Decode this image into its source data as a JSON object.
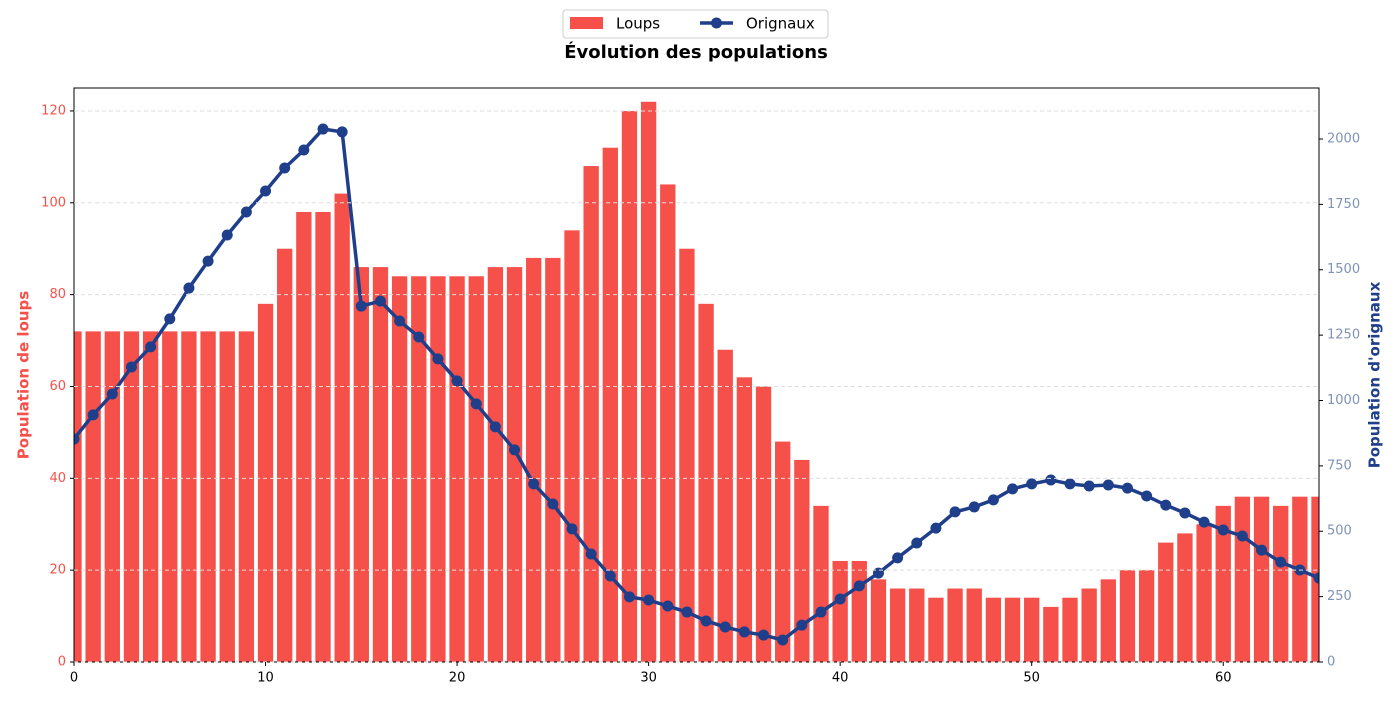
{
  "chart_data": {
    "type": "combo",
    "title": "Évolution des populations",
    "ylabel": "Population de loups",
    "y2label": "Population d'orignaux",
    "x": [
      0,
      1,
      2,
      3,
      4,
      5,
      6,
      7,
      8,
      9,
      10,
      11,
      12,
      13,
      14,
      15,
      16,
      17,
      18,
      19,
      20,
      21,
      22,
      23,
      24,
      25,
      26,
      27,
      28,
      29,
      30,
      31,
      32,
      33,
      34,
      35,
      36,
      37,
      38,
      39,
      40,
      41,
      42,
      43,
      44,
      45,
      46,
      47,
      48,
      49,
      50,
      51,
      52,
      53,
      54,
      55,
      56,
      57,
      58,
      59,
      60,
      61,
      62,
      63,
      64,
      65
    ],
    "series": [
      {
        "name": "Loups",
        "type": "bar",
        "color": "#f5514a",
        "values": [
          72,
          72,
          72,
          72,
          72,
          72,
          72,
          72,
          72,
          72,
          78,
          90,
          98,
          98,
          102,
          86,
          86,
          84,
          84,
          84,
          84,
          84,
          86,
          86,
          88,
          88,
          94,
          108,
          112,
          120,
          122,
          104,
          90,
          78,
          68,
          62,
          60,
          48,
          44,
          34,
          22,
          22,
          18,
          16,
          16,
          14,
          16,
          16,
          14,
          14,
          14,
          12,
          14,
          16,
          18,
          20,
          20,
          26,
          28,
          30,
          34,
          36,
          36,
          34,
          36,
          36
        ]
      },
      {
        "name": "Orignaux",
        "type": "line",
        "axis": "y2",
        "color": "#1f3f8a",
        "values": [
          853,
          945,
          1025,
          1128,
          1205,
          1312,
          1430,
          1533,
          1633,
          1721,
          1801,
          1889,
          1958,
          2038,
          2027,
          1361,
          1380,
          1304,
          1243,
          1159,
          1075,
          987,
          899,
          811,
          681,
          604,
          509,
          413,
          329,
          249,
          237,
          214,
          191,
          157,
          134,
          115,
          103,
          84,
          141,
          191,
          241,
          291,
          340,
          398,
          455,
          512,
          574,
          593,
          620,
          662,
          681,
          696,
          681,
          673,
          677,
          665,
          635,
          600,
          570,
          535,
          505,
          482,
          428,
          382,
          352,
          321
        ]
      }
    ],
    "xlim": [
      0,
      65
    ],
    "xticks": [
      0,
      10,
      20,
      30,
      40,
      50,
      60
    ],
    "ylim": [
      0,
      125
    ],
    "yticks": [
      0,
      20,
      40,
      60,
      80,
      100,
      120
    ],
    "y2lim": [
      0,
      2195
    ],
    "y2ticks": [
      0,
      250,
      500,
      750,
      1000,
      1250,
      1500,
      1750,
      2000
    ],
    "grid": true,
    "legend": "top center"
  }
}
